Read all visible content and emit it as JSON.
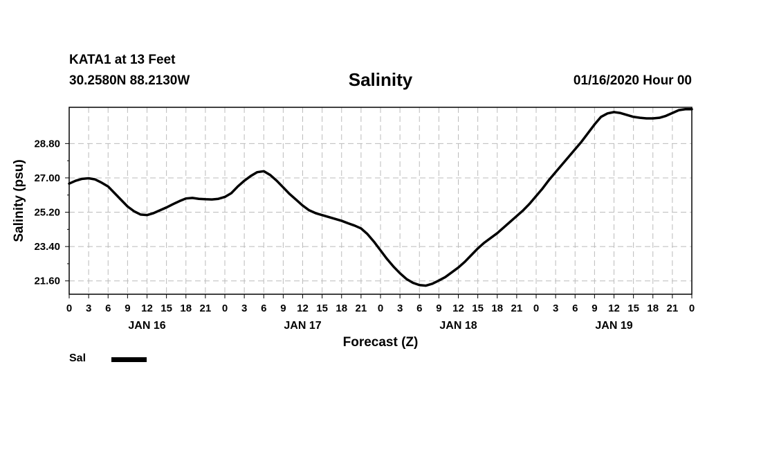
{
  "header": {
    "station": "KATA1 at 13 Feet",
    "coords": "30.2580N 88.2130W",
    "title": "Salinity",
    "datetime": "01/16/2020 Hour 00"
  },
  "legend": {
    "label": "Sal"
  },
  "chart_data": {
    "type": "line",
    "title": "Salinity",
    "xlabel": "Forecast (Z)",
    "ylabel": "Salinity (psu)",
    "x_unit": "hours from 01/16/2020 00Z",
    "xlim": [
      0,
      96
    ],
    "ylim": [
      20.9,
      30.7
    ],
    "yticks": [
      21.6,
      23.4,
      25.2,
      27.0,
      28.8
    ],
    "ytick_labels": [
      "21.60",
      "23.40",
      "25.20",
      "27.00",
      "28.80"
    ],
    "xticks": [
      0,
      3,
      6,
      9,
      12,
      15,
      18,
      21,
      24,
      27,
      30,
      33,
      36,
      39,
      42,
      45,
      48,
      51,
      54,
      57,
      60,
      63,
      66,
      69,
      72,
      75,
      78,
      81,
      84,
      87,
      90,
      93,
      96
    ],
    "xtick_labels": [
      "0",
      "3",
      "6",
      "9",
      "12",
      "15",
      "18",
      "21",
      "0",
      "3",
      "6",
      "9",
      "12",
      "15",
      "18",
      "21",
      "0",
      "3",
      "6",
      "9",
      "12",
      "15",
      "18",
      "21",
      "0",
      "3",
      "6",
      "9",
      "12",
      "15",
      "18",
      "21",
      "0"
    ],
    "day_labels": [
      {
        "x": 12,
        "label": "JAN 16"
      },
      {
        "x": 36,
        "label": "JAN 17"
      },
      {
        "x": 60,
        "label": "JAN 18"
      },
      {
        "x": 84,
        "label": "JAN 19"
      }
    ],
    "grid": true,
    "legend_position": "bottom-left",
    "series": [
      {
        "name": "Sal",
        "color": "#000000",
        "x": [
          0,
          1,
          2,
          3,
          4,
          5,
          6,
          7,
          8,
          9,
          10,
          11,
          12,
          13,
          14,
          15,
          16,
          17,
          18,
          19,
          20,
          21,
          22,
          23,
          24,
          25,
          26,
          27,
          28,
          29,
          30,
          31,
          32,
          33,
          34,
          35,
          36,
          37,
          38,
          39,
          40,
          41,
          42,
          43,
          44,
          45,
          46,
          47,
          48,
          49,
          50,
          51,
          52,
          53,
          54,
          55,
          56,
          57,
          58,
          59,
          60,
          61,
          62,
          63,
          64,
          65,
          66,
          67,
          68,
          69,
          70,
          71,
          72,
          73,
          74,
          75,
          76,
          77,
          78,
          79,
          80,
          81,
          82,
          83,
          84,
          85,
          86,
          87,
          88,
          89,
          90,
          91,
          92,
          93,
          94,
          95,
          96
        ],
        "y": [
          26.7,
          26.85,
          26.95,
          26.98,
          26.92,
          26.75,
          26.55,
          26.2,
          25.85,
          25.5,
          25.25,
          25.08,
          25.05,
          25.15,
          25.3,
          25.45,
          25.62,
          25.78,
          25.92,
          25.95,
          25.9,
          25.88,
          25.87,
          25.9,
          26.0,
          26.2,
          26.55,
          26.85,
          27.1,
          27.3,
          27.35,
          27.15,
          26.85,
          26.5,
          26.15,
          25.85,
          25.55,
          25.3,
          25.15,
          25.05,
          24.95,
          24.85,
          24.75,
          24.62,
          24.5,
          24.35,
          24.05,
          23.65,
          23.2,
          22.75,
          22.35,
          22.0,
          21.7,
          21.5,
          21.38,
          21.35,
          21.45,
          21.62,
          21.8,
          22.05,
          22.3,
          22.6,
          22.95,
          23.3,
          23.6,
          23.85,
          24.1,
          24.4,
          24.7,
          25.0,
          25.3,
          25.65,
          26.05,
          26.45,
          26.9,
          27.3,
          27.7,
          28.1,
          28.5,
          28.9,
          29.35,
          29.8,
          30.2,
          30.38,
          30.45,
          30.4,
          30.3,
          30.2,
          30.15,
          30.12,
          30.12,
          30.15,
          30.25,
          30.4,
          30.55,
          30.6,
          30.6
        ]
      }
    ]
  }
}
